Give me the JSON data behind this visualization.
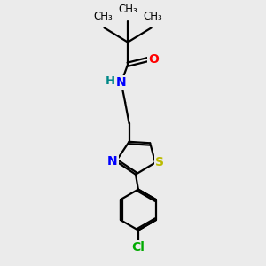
{
  "bg_color": "#ebebeb",
  "bond_color": "#000000",
  "bond_width": 1.6,
  "atom_colors": {
    "O": "#ff0000",
    "N": "#0000ff",
    "S": "#bbbb00",
    "Cl": "#00aa00",
    "C": "#000000",
    "H": "#008888"
  },
  "font_size_atoms": 10,
  "font_size_small": 8.5,
  "xlim": [
    0,
    10
  ],
  "ylim": [
    0,
    10
  ]
}
